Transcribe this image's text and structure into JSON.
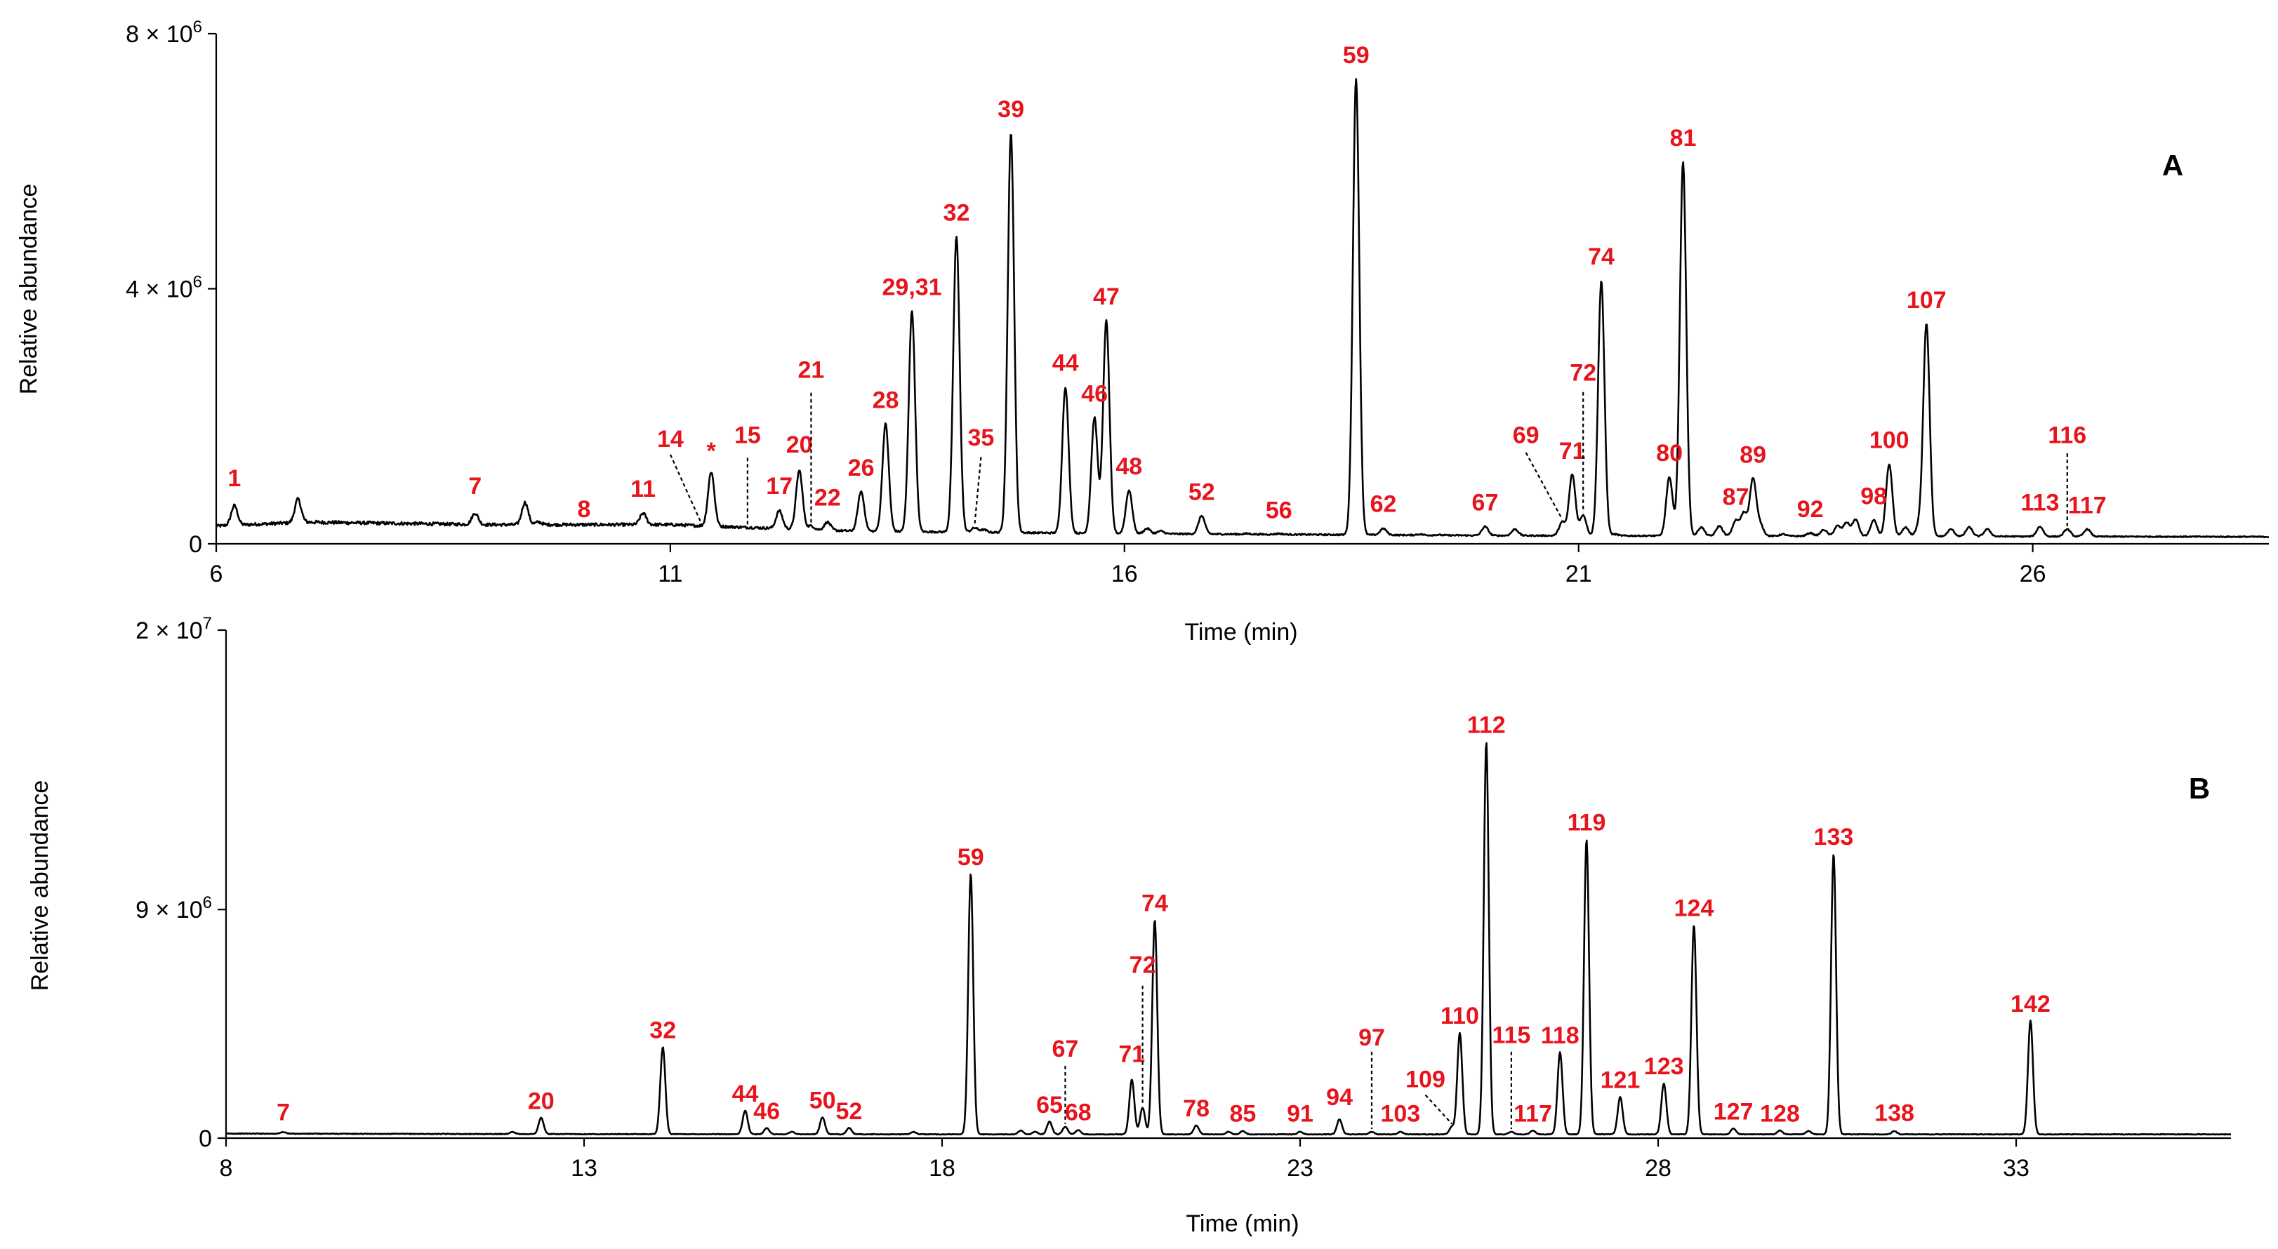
{
  "chart_data": [
    {
      "panel": "A",
      "type": "line",
      "title": "",
      "xlabel": "Time (min)",
      "ylabel": "Relative abundance",
      "xlim": [
        6,
        28.6
      ],
      "ylim": [
        0,
        8000000
      ],
      "x_ticks": [
        {
          "value": 6,
          "label": "6"
        },
        {
          "value": 11,
          "label": "11"
        },
        {
          "value": 16,
          "label": "16"
        },
        {
          "value": 21,
          "label": "21"
        },
        {
          "value": 26,
          "label": "26"
        }
      ],
      "y_ticks": [
        {
          "value": 0,
          "label": "0"
        },
        {
          "value": 4000000,
          "label": "4 × 10",
          "exp": "6"
        },
        {
          "value": 8000000,
          "label": "8 × 10",
          "exp": "6"
        }
      ],
      "baseline": [
        [
          6.0,
          280000
        ],
        [
          7.0,
          340000
        ],
        [
          9.0,
          300000
        ],
        [
          11.0,
          300000
        ],
        [
          13.0,
          200000
        ],
        [
          16.0,
          160000
        ],
        [
          20.0,
          130000
        ],
        [
          24.0,
          120000
        ],
        [
          28.6,
          110000
        ]
      ],
      "peaks": [
        {
          "label": "1",
          "x": 6.2,
          "y": 600000,
          "label_y": 900000
        },
        {
          "x": 6.9,
          "y": 700000
        },
        {
          "x": 7.7,
          "y": 300000
        },
        {
          "x": 8.1,
          "y": 220000
        },
        {
          "label": "7",
          "x": 8.85,
          "y": 480000,
          "label_y": 780000
        },
        {
          "x": 9.4,
          "y": 650000
        },
        {
          "x": 9.55,
          "y": 340000
        },
        {
          "label": "8",
          "x": 10.05,
          "y": 220000,
          "label_y": 420000
        },
        {
          "label": "11",
          "x": 10.7,
          "y": 480000,
          "label_y": 740000
        },
        {
          "x": 11.0,
          "y": 280000
        },
        {
          "label": "14",
          "x": 11.35,
          "y": 250000,
          "label_y": 1520000,
          "leader": true,
          "label_x": 11.0,
          "leader_from_y": 1400000
        },
        {
          "label": "*",
          "x": 11.45,
          "y": 1130000,
          "label_y": 1330000
        },
        {
          "label": "15",
          "x": 11.85,
          "y": 240000,
          "label_y": 1580000,
          "leader": true,
          "leader_from_y": 1350000
        },
        {
          "label": "17",
          "x": 12.2,
          "y": 520000,
          "label_y": 780000
        },
        {
          "label": "20",
          "x": 12.42,
          "y": 1150000,
          "label_y": 1430000
        },
        {
          "label": "21",
          "x": 12.55,
          "y": 280000,
          "label_y": 2600000,
          "leader": true,
          "leader_from_y": 2370000
        },
        {
          "label": "22",
          "x": 12.73,
          "y": 340000,
          "label_y": 600000
        },
        {
          "label": "26",
          "x": 13.1,
          "y": 820000,
          "label_y": 1070000
        },
        {
          "label": "28",
          "x": 13.37,
          "y": 1880000,
          "label_y": 2130000
        },
        {
          "label": "29,31",
          "x": 13.66,
          "y": 3650000,
          "label_y": 3900000
        },
        {
          "label": "32",
          "x": 14.15,
          "y": 4820000,
          "label_y": 5070000
        },
        {
          "label": "35",
          "x": 14.35,
          "y": 250000,
          "label_y": 1540000,
          "leader": true,
          "label_x": 14.42,
          "leader_from_y": 1360000
        },
        {
          "x": 14.45,
          "y": 220000
        },
        {
          "label": "39",
          "x": 14.75,
          "y": 6440000,
          "label_y": 6690000
        },
        {
          "label": "44",
          "x": 15.35,
          "y": 2460000,
          "label_y": 2710000
        },
        {
          "label": "46",
          "x": 15.67,
          "y": 1980000,
          "label_y": 2230000
        },
        {
          "label": "47",
          "x": 15.8,
          "y": 3500000,
          "label_y": 3750000
        },
        {
          "label": "48",
          "x": 16.05,
          "y": 840000,
          "label_y": 1090000
        },
        {
          "x": 16.25,
          "y": 240000
        },
        {
          "x": 16.4,
          "y": 200000
        },
        {
          "label": "52",
          "x": 16.85,
          "y": 440000,
          "label_y": 690000
        },
        {
          "x": 17.35,
          "y": 160000
        },
        {
          "label": "56",
          "x": 17.7,
          "y": 160000,
          "label_y": 400000
        },
        {
          "label": "59",
          "x": 18.55,
          "y": 7290000,
          "label_y": 7540000
        },
        {
          "label": "62",
          "x": 18.85,
          "y": 240000,
          "label_y": 500000
        },
        {
          "x": 19.25,
          "y": 150000
        },
        {
          "x": 19.45,
          "y": 140000
        },
        {
          "label": "67",
          "x": 19.97,
          "y": 270000,
          "label_y": 520000
        },
        {
          "x": 20.3,
          "y": 230000
        },
        {
          "label": "69",
          "x": 20.82,
          "y": 340000,
          "label_y": 1580000,
          "leader": true,
          "label_x": 20.42,
          "leader_from_y": 1430000
        },
        {
          "label": "71",
          "x": 20.93,
          "y": 1090000,
          "label_y": 1330000
        },
        {
          "label": "72",
          "x": 21.05,
          "y": 450000,
          "label_y": 2560000,
          "leader": true,
          "leader_from_y": 2380000
        },
        {
          "label": "74",
          "x": 21.25,
          "y": 4130000,
          "label_y": 4380000
        },
        {
          "x": 21.4,
          "y": 150000
        },
        {
          "label": "80",
          "x": 22.0,
          "y": 1050000,
          "label_y": 1300000
        },
        {
          "label": "81",
          "x": 22.15,
          "y": 5990000,
          "label_y": 6240000
        },
        {
          "x": 22.35,
          "y": 260000
        },
        {
          "x": 22.55,
          "y": 280000
        },
        {
          "label": "87",
          "x": 22.73,
          "y": 360000,
          "label_y": 610000
        },
        {
          "x": 22.82,
          "y": 480000
        },
        {
          "label": "89",
          "x": 22.92,
          "y": 1020000,
          "label_y": 1270000
        },
        {
          "x": 23.0,
          "y": 300000
        },
        {
          "x": 23.25,
          "y": 150000
        },
        {
          "label": "92",
          "x": 23.55,
          "y": 170000,
          "label_y": 420000
        },
        {
          "x": 23.7,
          "y": 220000
        },
        {
          "x": 23.85,
          "y": 280000
        },
        {
          "x": 23.95,
          "y": 330000
        },
        {
          "x": 24.05,
          "y": 380000
        },
        {
          "label": "98",
          "x": 24.25,
          "y": 370000,
          "label_y": 620000
        },
        {
          "label": "100",
          "x": 24.42,
          "y": 1240000,
          "label_y": 1500000
        },
        {
          "x": 24.6,
          "y": 260000
        },
        {
          "x": 24.75,
          "y": 280000
        },
        {
          "label": "107",
          "x": 24.83,
          "y": 3450000,
          "label_y": 3700000
        },
        {
          "x": 25.1,
          "y": 230000
        },
        {
          "x": 25.3,
          "y": 260000
        },
        {
          "x": 25.5,
          "y": 230000
        },
        {
          "label": "113",
          "x": 26.08,
          "y": 270000,
          "label_y": 520000
        },
        {
          "label": "116",
          "x": 26.38,
          "y": 230000,
          "label_y": 1580000,
          "leader": true,
          "leader_from_y": 1420000
        },
        {
          "label": "117",
          "x": 26.6,
          "y": 230000,
          "label_y": 480000
        }
      ]
    },
    {
      "panel": "B",
      "type": "line",
      "title": "",
      "xlabel": "Time (min)",
      "ylabel": "Relative abundance",
      "xlim": [
        8,
        36
      ],
      "ylim": [
        0,
        20000000
      ],
      "x_ticks": [
        {
          "value": 8,
          "label": "8"
        },
        {
          "value": 13,
          "label": "13"
        },
        {
          "value": 18,
          "label": "18"
        },
        {
          "value": 23,
          "label": "23"
        },
        {
          "value": 28,
          "label": "28"
        },
        {
          "value": 33,
          "label": "33"
        }
      ],
      "y_ticks": [
        {
          "value": 0,
          "label": "0"
        },
        {
          "value": 9000000,
          "label": "9 × 10",
          "exp": "6"
        },
        {
          "value": 20000000,
          "label": "2 × 10",
          "exp": "7"
        }
      ],
      "baseline": [
        [
          8.0,
          180000
        ],
        [
          12.0,
          160000
        ],
        [
          18.0,
          150000
        ],
        [
          24.0,
          150000
        ],
        [
          30.0,
          150000
        ],
        [
          36.0,
          150000
        ]
      ],
      "peaks": [
        {
          "label": "7",
          "x": 8.8,
          "y": 240000,
          "label_y": 700000
        },
        {
          "x": 12.0,
          "y": 250000
        },
        {
          "label": "20",
          "x": 12.4,
          "y": 800000,
          "label_y": 1150000
        },
        {
          "label": "32",
          "x": 14.1,
          "y": 3580000,
          "label_y": 3930000
        },
        {
          "label": "44",
          "x": 15.25,
          "y": 1080000,
          "label_y": 1430000
        },
        {
          "label": "46",
          "x": 15.55,
          "y": 400000,
          "label_y": 750000
        },
        {
          "x": 15.9,
          "y": 250000
        },
        {
          "label": "50",
          "x": 16.33,
          "y": 820000,
          "label_y": 1170000
        },
        {
          "label": "52",
          "x": 16.7,
          "y": 400000,
          "label_y": 750000
        },
        {
          "x": 17.6,
          "y": 250000
        },
        {
          "label": "59",
          "x": 18.4,
          "y": 10400000,
          "label_y": 10750000
        },
        {
          "x": 19.1,
          "y": 300000
        },
        {
          "x": 19.3,
          "y": 250000
        },
        {
          "label": "65",
          "x": 19.5,
          "y": 650000,
          "label_y": 1000000
        },
        {
          "label": "67",
          "x": 19.72,
          "y": 450000,
          "label_y": 3200000,
          "leader": true,
          "leader_from_y": 2850000
        },
        {
          "label": "68",
          "x": 19.9,
          "y": 320000,
          "label_y": 700000
        },
        {
          "label": "71",
          "x": 20.65,
          "y": 2300000,
          "label_y": 3000000
        },
        {
          "label": "72",
          "x": 20.8,
          "y": 1200000,
          "label_y": 6500000,
          "leader": true,
          "leader_from_y": 6000000
        },
        {
          "label": "74",
          "x": 20.97,
          "y": 8590000,
          "label_y": 8940000
        },
        {
          "label": "78",
          "x": 21.55,
          "y": 500000,
          "label_y": 850000
        },
        {
          "x": 22.0,
          "y": 250000
        },
        {
          "label": "85",
          "x": 22.2,
          "y": 280000,
          "label_y": 650000
        },
        {
          "label": "91",
          "x": 23.0,
          "y": 250000,
          "label_y": 650000
        },
        {
          "label": "94",
          "x": 23.55,
          "y": 740000,
          "label_y": 1300000
        },
        {
          "label": "97",
          "x": 24.0,
          "y": 250000,
          "label_y": 3650000,
          "leader": true,
          "leader_from_y": 3400000
        },
        {
          "label": "103",
          "x": 24.4,
          "y": 250000,
          "label_y": 650000
        },
        {
          "label": "109",
          "x": 25.12,
          "y": 450000,
          "label_y": 2000000,
          "leader": true,
          "label_x": 24.75,
          "leader_from_y": 1700000
        },
        {
          "label": "110",
          "x": 25.23,
          "y": 4150000,
          "label_y": 4500000
        },
        {
          "label": "112",
          "x": 25.6,
          "y": 15600000,
          "label_y": 15950000
        },
        {
          "label": "115",
          "x": 25.95,
          "y": 250000,
          "label_y": 3750000,
          "leader": true,
          "leader_from_y": 3400000
        },
        {
          "label": "117",
          "x": 26.25,
          "y": 300000,
          "label_y": 650000
        },
        {
          "label": "118",
          "x": 26.63,
          "y": 3380000,
          "label_y": 3730000
        },
        {
          "label": "119",
          "x": 27.0,
          "y": 11760000,
          "label_y": 12110000
        },
        {
          "label": "121",
          "x": 27.47,
          "y": 1620000,
          "label_y": 1970000
        },
        {
          "label": "123",
          "x": 28.08,
          "y": 2160000,
          "label_y": 2510000
        },
        {
          "label": "124",
          "x": 28.5,
          "y": 8400000,
          "label_y": 8750000
        },
        {
          "label": "127",
          "x": 29.05,
          "y": 380000,
          "label_y": 730000
        },
        {
          "label": "128",
          "x": 29.7,
          "y": 300000,
          "label_y": 650000
        },
        {
          "x": 30.1,
          "y": 280000
        },
        {
          "label": "133",
          "x": 30.45,
          "y": 11200000,
          "label_y": 11550000
        },
        {
          "label": "138",
          "x": 31.3,
          "y": 280000,
          "label_y": 680000
        },
        {
          "label": "142",
          "x": 33.2,
          "y": 4620000,
          "label_y": 4970000
        }
      ]
    }
  ]
}
